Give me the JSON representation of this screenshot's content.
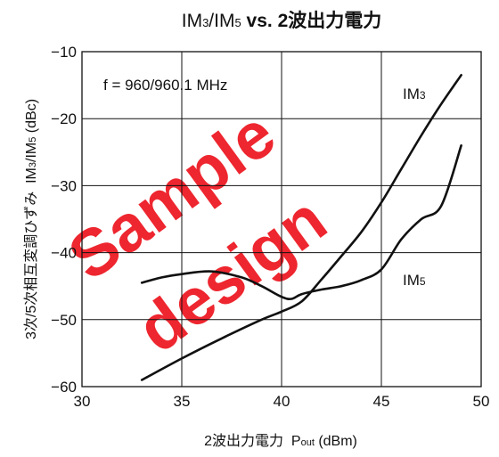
{
  "chart_data": {
    "type": "line",
    "title": {
      "a": "IM",
      "a_sub": "3",
      "b": "/IM",
      "b_sub": "5",
      "c": " vs. ",
      "d": "2波出力電力"
    },
    "xlabel": {
      "main": "2波出力電力  P",
      "sub": "out",
      "unit": " (dBm)"
    },
    "ylabel": {
      "main": "3次/5次相互変調ひずみ  IM",
      "sub1": "3",
      "mid": "/IM",
      "sub2": "5",
      "unit": " (dBc)"
    },
    "xlim": [
      30,
      50
    ],
    "ylim": [
      -60,
      -10
    ],
    "xticks": [
      30,
      35,
      40,
      45,
      50
    ],
    "yticks": [
      -10,
      -20,
      -30,
      -40,
      -50,
      -60
    ],
    "xtick_labels": [
      "30",
      "35",
      "40",
      "45",
      "50"
    ],
    "ytick_labels": [
      "−10",
      "−20",
      "−30",
      "−40",
      "−50",
      "−60"
    ],
    "grid": true,
    "annotation": "f = 960/960.1 MHz",
    "series": [
      {
        "name": "IM3",
        "label_main": "IM",
        "label_sub": "3",
        "x": [
          33,
          35,
          37,
          39,
          40,
          41,
          42,
          43,
          44,
          45,
          46,
          47,
          48,
          49
        ],
        "y": [
          -59.0,
          -55.8,
          -52.8,
          -50.0,
          -48.8,
          -47.3,
          -44.0,
          -40.5,
          -36.9,
          -32.5,
          -27.5,
          -22.5,
          -17.8,
          -13.5
        ]
      },
      {
        "name": "IM5",
        "label_main": "IM",
        "label_sub": "5",
        "x": [
          33,
          34,
          35,
          36.5,
          38,
          39,
          40,
          40.5,
          41,
          42,
          43,
          44,
          45,
          46,
          47,
          48,
          49
        ],
        "y": [
          -44.5,
          -43.7,
          -43.2,
          -42.8,
          -43.7,
          -45.0,
          -46.6,
          -46.9,
          -46.2,
          -45.5,
          -45.0,
          -44.1,
          -42.5,
          -38.0,
          -35.0,
          -33.0,
          -24.0
        ]
      }
    ]
  },
  "watermark": {
    "line1": "Sample",
    "line2": "design"
  }
}
